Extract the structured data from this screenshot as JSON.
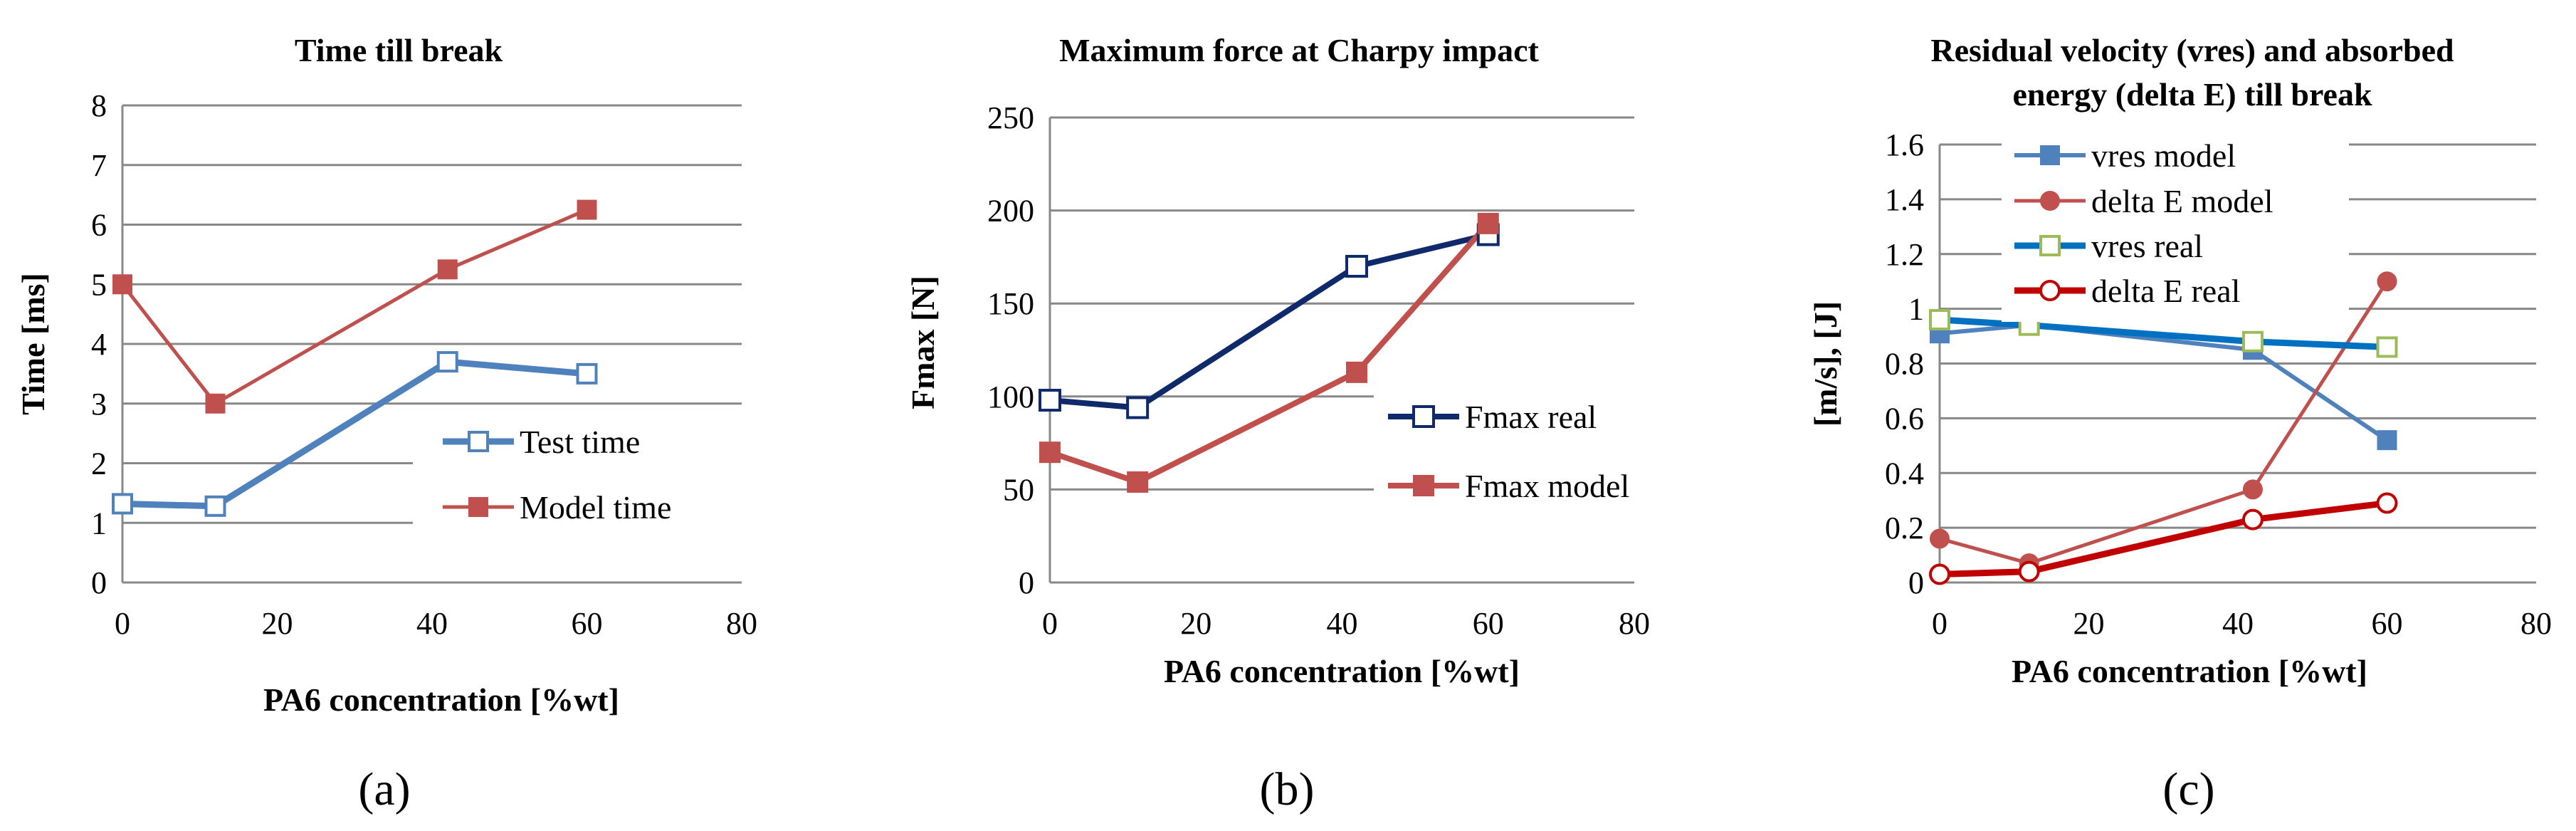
{
  "colors": {
    "grid": "#888888",
    "axis": "#888888",
    "steel_blue": "#4f81bd",
    "red": "#c0504d",
    "navy": "#0f2a6b",
    "bright_blue": "#0070c0",
    "dark_red": "#c00000",
    "green_outline": "#9bbb59"
  },
  "chart_data": [
    {
      "type": "line",
      "panel_label": "(a)",
      "title": "Time till break",
      "xlabel": "PA6 concentration [%wt]",
      "ylabel": "Time [ms]",
      "xlim": [
        0,
        80
      ],
      "ylim": [
        0,
        8
      ],
      "xticks": [
        "0",
        "20",
        "40",
        "60",
        "80"
      ],
      "yticks": [
        "0",
        "1",
        "2",
        "3",
        "4",
        "5",
        "6",
        "7",
        "8"
      ],
      "series": [
        {
          "name": "Test time",
          "x": [
            0,
            12,
            42,
            60
          ],
          "values": [
            1.32,
            1.28,
            3.7,
            3.5
          ],
          "color": "#4f81bd",
          "marker": "hollow-square"
        },
        {
          "name": "Model time",
          "x": [
            0,
            12,
            42,
            60
          ],
          "values": [
            5.0,
            3.0,
            5.25,
            6.25
          ],
          "color": "#c0504d",
          "marker": "filled-square"
        }
      ]
    },
    {
      "type": "line",
      "panel_label": "(b)",
      "title": "Maximum force at Charpy impact",
      "xlabel": "PA6 concentration [%wt]",
      "ylabel": "Fmax [N]",
      "xlim": [
        0,
        80
      ],
      "ylim": [
        0,
        250
      ],
      "xticks": [
        "0",
        "20",
        "40",
        "60",
        "80"
      ],
      "yticks": [
        "0",
        "50",
        "100",
        "150",
        "200",
        "250"
      ],
      "series": [
        {
          "name": "Fmax real",
          "x": [
            0,
            12,
            42,
            60
          ],
          "values": [
            98,
            94,
            170,
            187
          ],
          "color": "#0f2a6b",
          "marker": "hollow-square"
        },
        {
          "name": "Fmax model",
          "x": [
            0,
            12,
            42,
            60
          ],
          "values": [
            70,
            54,
            113,
            193
          ],
          "color": "#c0504d",
          "marker": "filled-square"
        }
      ]
    },
    {
      "type": "line",
      "panel_label": "(c)",
      "title": "Residual velocity (vres) and absorbed energy (delta E) till break",
      "title_lines": [
        "Residual velocity (vres) and absorbed",
        "energy (delta E) till break"
      ],
      "xlabel": "PA6 concentration [%wt]",
      "ylabel": "[m/s], [J]",
      "xlim": [
        0,
        80
      ],
      "ylim": [
        0,
        1.6
      ],
      "xticks": [
        "0",
        "20",
        "40",
        "60",
        "80"
      ],
      "yticks": [
        "0",
        "0.2",
        "0.4",
        "0.6",
        "0.8",
        "1",
        "1.2",
        "1.4",
        "1.6"
      ],
      "series": [
        {
          "name": "vres model",
          "x": [
            0,
            12,
            42,
            60
          ],
          "values": [
            0.91,
            0.94,
            0.85,
            0.52
          ],
          "color": "#4f81bd",
          "marker": "filled-square"
        },
        {
          "name": "delta E model",
          "x": [
            0,
            12,
            42,
            60
          ],
          "values": [
            0.16,
            0.07,
            0.34,
            1.1
          ],
          "color": "#c0504d",
          "marker": "filled-circle"
        },
        {
          "name": "vres real",
          "x": [
            0,
            12,
            42,
            60
          ],
          "values": [
            0.96,
            0.94,
            0.88,
            0.86
          ],
          "color": "#0070c0",
          "marker": "hollow-square-green"
        },
        {
          "name": "delta E real",
          "x": [
            0,
            12,
            42,
            60
          ],
          "values": [
            0.03,
            0.04,
            0.23,
            0.29
          ],
          "color": "#c00000",
          "marker": "hollow-circle"
        }
      ]
    }
  ]
}
